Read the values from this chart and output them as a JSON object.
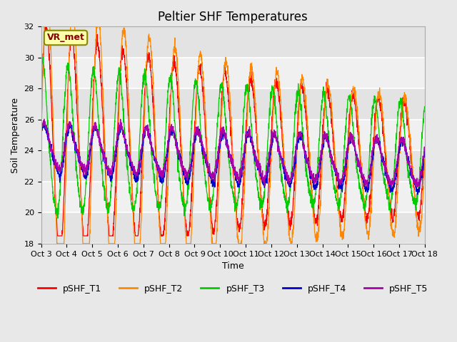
{
  "title": "Peltier SHF Temperatures",
  "ylabel": "Soil Temperature",
  "xlabel": "Time",
  "annotation": "VR_met",
  "ylim": [
    18,
    32
  ],
  "yticks": [
    18,
    20,
    22,
    24,
    26,
    28,
    30,
    32
  ],
  "xtick_labels": [
    "Oct 3",
    "Oct 4",
    "Oct 5",
    "Oct 6",
    "Oct 7",
    "Oct 8",
    "Oct 9",
    "Oct 10",
    "Oct 11",
    "Oct 12",
    "Oct 13",
    "Oct 14",
    "Oct 15",
    "Oct 16",
    "Oct 17",
    "Oct 18"
  ],
  "series_colors": [
    "#ff0000",
    "#ff8800",
    "#00cc00",
    "#0000cc",
    "#aa00aa"
  ],
  "series_labels": [
    "pSHF_T1",
    "pSHF_T2",
    "pSHF_T3",
    "pSHF_T4",
    "pSHF_T5"
  ],
  "bg_color": "#e8e8e8",
  "plot_bg": "#f0f0f0",
  "grid_color": "#ffffff",
  "title_fontsize": 12,
  "label_fontsize": 9,
  "tick_fontsize": 8
}
